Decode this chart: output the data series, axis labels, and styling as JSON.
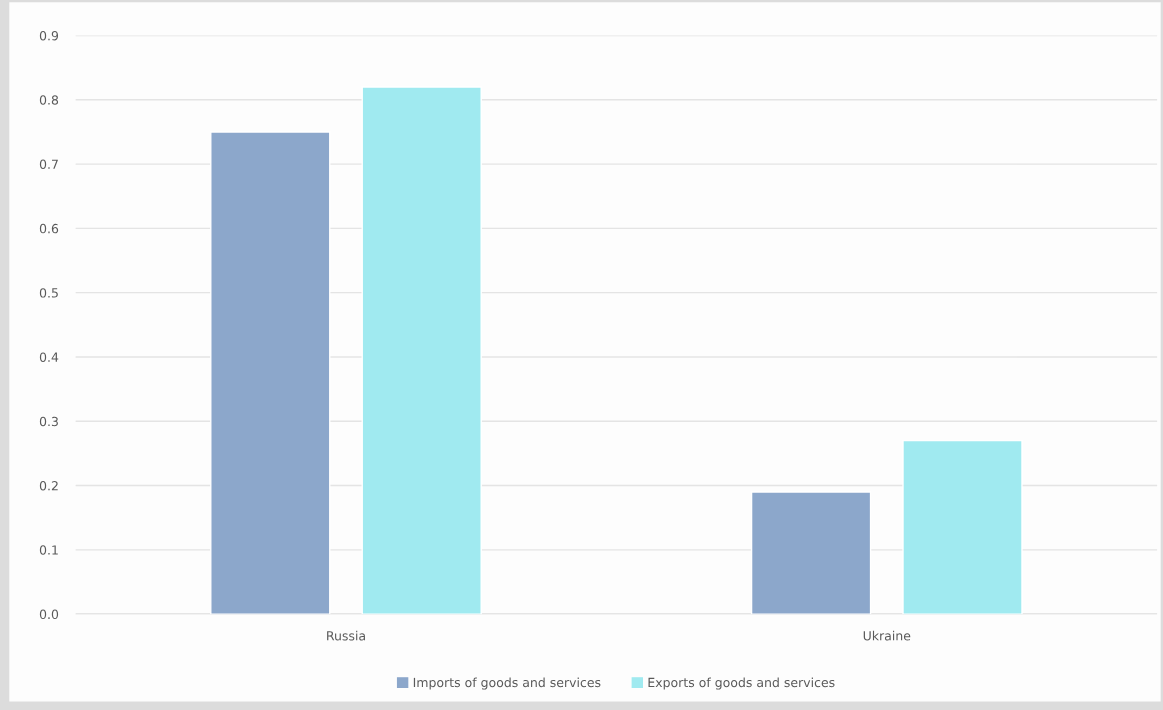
{
  "chart_data": {
    "type": "bar",
    "categories": [
      "Russia",
      "Ukraine"
    ],
    "series": [
      {
        "name": "Imports of goods and services",
        "color": "#8ca7cb",
        "values": [
          0.75,
          0.19
        ]
      },
      {
        "name": "Exports of goods and services",
        "color": "#a0eaf0",
        "values": [
          0.82,
          0.27
        ]
      }
    ],
    "ylim": [
      0,
      0.9
    ],
    "yticks": [
      {
        "value": 0,
        "label": "0.0"
      },
      0.1,
      0.2,
      0.3,
      0.4,
      0.5,
      0.6,
      0.7,
      0.8,
      0.9
    ],
    "grid": "y",
    "legend": "bottom"
  }
}
